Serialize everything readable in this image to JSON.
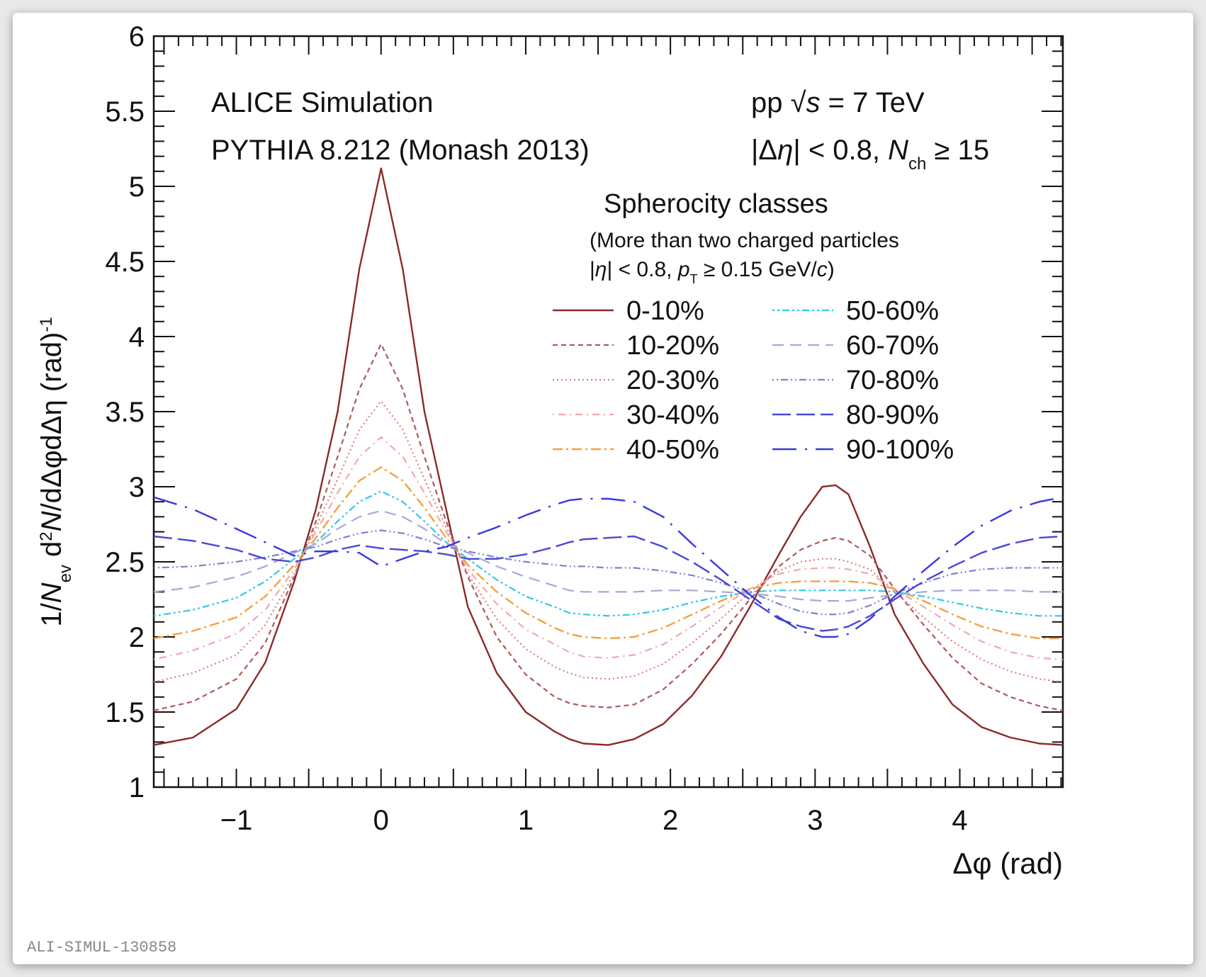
{
  "chart_data": {
    "type": "line",
    "xlabel": "Δφ (rad)",
    "ylabel": {
      "parts": [
        {
          "t": "1/",
          "s": "n"
        },
        {
          "t": "N",
          "s": "i"
        },
        {
          "t": "ev",
          "s": "sub"
        },
        {
          "t": " d",
          "s": "n"
        },
        {
          "t": "2",
          "s": "sup"
        },
        {
          "t": "N",
          "s": "i"
        },
        {
          "t": "/dΔφdΔη (rad)",
          "s": "n"
        },
        {
          "t": "-1",
          "s": "sup"
        }
      ]
    },
    "xlim": [
      -1.5708,
      4.7124
    ],
    "ylim": [
      1,
      6
    ],
    "x_ticks": [
      -1,
      0,
      1,
      2,
      3,
      4
    ],
    "x_tick_labels": [
      "−1",
      "0",
      "1",
      "2",
      "3",
      "4"
    ],
    "y_ticks": [
      1,
      1.5,
      2,
      2.5,
      3,
      3.5,
      4,
      4.5,
      5,
      5.5,
      6
    ],
    "y_tick_labels": [
      "1",
      "1.5",
      "2",
      "2.5",
      "3",
      "3.5",
      "4",
      "4.5",
      "5",
      "5.5",
      "6"
    ],
    "annotations": {
      "experiment": "ALICE Simulation",
      "generator": "PYTHIA 8.212 (Monash 2013)",
      "energy": {
        "parts": [
          {
            "t": "pp ",
            "s": "n"
          },
          {
            "t": "√",
            "s": "n"
          },
          {
            "t": "s",
            "s": "i"
          },
          {
            "t": " = 7 TeV",
            "s": "n"
          }
        ]
      },
      "cuts": {
        "parts": [
          {
            "t": "|Δ",
            "s": "n"
          },
          {
            "t": "η",
            "s": "i"
          },
          {
            "t": "| < 0.8, ",
            "s": "n"
          },
          {
            "t": "N",
            "s": "i"
          },
          {
            "t": "ch",
            "s": "sub"
          },
          {
            "t": " ≥ 15",
            "s": "n"
          }
        ]
      },
      "legend_title": "Spherocity classes",
      "legend_note1": "(More than two charged particles",
      "legend_note2": {
        "parts": [
          {
            "t": "|",
            "s": "n"
          },
          {
            "t": "η",
            "s": "i"
          },
          {
            "t": "| < 0.8, ",
            "s": "n"
          },
          {
            "t": "p",
            "s": "i"
          },
          {
            "t": "T",
            "s": "sub"
          },
          {
            "t": " ≥ 0.15 GeV/",
            "s": "n"
          },
          {
            "t": "c",
            "s": "i"
          },
          {
            "t": ")",
            "s": "n"
          }
        ]
      },
      "figure_id": "ALI-SIMUL-130858"
    },
    "legend_placement": "top-right",
    "near_side_x": [
      -1.5708,
      -1.3,
      -1.0,
      -0.8,
      -0.6,
      -0.45,
      -0.3,
      -0.15,
      0.0,
      0.15,
      0.3,
      0.45,
      0.6,
      0.8,
      1.0,
      1.2,
      1.3,
      1.4,
      1.5708
    ],
    "away_side_x": [
      1.5708,
      1.75,
      1.95,
      2.15,
      2.35,
      2.55,
      2.75,
      2.9,
      3.05,
      3.1416,
      3.23,
      3.38,
      3.55,
      3.75,
      3.95,
      4.15,
      4.35,
      4.55,
      4.7124
    ],
    "series": [
      {
        "name": "0-10%",
        "color": "#8b2a2a",
        "dash": "",
        "width": 2.4,
        "near": [
          1.28,
          1.33,
          1.52,
          1.83,
          2.37,
          2.85,
          3.5,
          4.45,
          5.12,
          4.45,
          3.5,
          2.85,
          2.2,
          1.76,
          1.5,
          1.37,
          1.32,
          1.29,
          1.28
        ],
        "away": [
          1.28,
          1.32,
          1.42,
          1.61,
          1.87,
          2.2,
          2.55,
          2.8,
          3.0,
          3.01,
          2.95,
          2.6,
          2.15,
          1.82,
          1.55,
          1.4,
          1.33,
          1.29,
          1.28
        ]
      },
      {
        "name": "10-20%",
        "color": "#b05858",
        "dash": "7,5",
        "width": 2.2,
        "near": [
          1.51,
          1.57,
          1.72,
          1.96,
          2.4,
          2.77,
          3.2,
          3.65,
          3.95,
          3.65,
          3.2,
          2.77,
          2.4,
          2.0,
          1.75,
          1.6,
          1.56,
          1.54,
          1.53
        ],
        "away": [
          1.53,
          1.55,
          1.65,
          1.82,
          2.02,
          2.25,
          2.47,
          2.58,
          2.64,
          2.66,
          2.64,
          2.54,
          2.32,
          2.08,
          1.86,
          1.69,
          1.6,
          1.54,
          1.51
        ]
      },
      {
        "name": "20-30%",
        "color": "#e07a7a",
        "dash": "2,4",
        "width": 2.2,
        "near": [
          1.7,
          1.76,
          1.88,
          2.08,
          2.42,
          2.73,
          3.05,
          3.38,
          3.57,
          3.38,
          3.05,
          2.73,
          2.42,
          2.12,
          1.92,
          1.8,
          1.76,
          1.73,
          1.72
        ],
        "away": [
          1.72,
          1.74,
          1.82,
          1.96,
          2.12,
          2.3,
          2.44,
          2.5,
          2.52,
          2.52,
          2.5,
          2.45,
          2.3,
          2.13,
          1.97,
          1.85,
          1.77,
          1.72,
          1.7
        ]
      },
      {
        "name": "30-40%",
        "color": "#f0a8a8",
        "dash": "2,6,10,6",
        "width": 2.2,
        "near": [
          1.85,
          1.91,
          2.02,
          2.18,
          2.45,
          2.7,
          2.96,
          3.2,
          3.33,
          3.2,
          2.96,
          2.7,
          2.45,
          2.22,
          2.05,
          1.95,
          1.9,
          1.87,
          1.86
        ],
        "away": [
          1.86,
          1.88,
          1.95,
          2.07,
          2.2,
          2.32,
          2.42,
          2.45,
          2.46,
          2.46,
          2.45,
          2.42,
          2.32,
          2.2,
          2.08,
          1.97,
          1.9,
          1.86,
          1.85
        ]
      },
      {
        "name": "40-50%",
        "color": "#f5a040",
        "dash": "14,5,3,5",
        "width": 2.4,
        "near": [
          1.99,
          2.04,
          2.13,
          2.27,
          2.48,
          2.66,
          2.86,
          3.04,
          3.13,
          3.04,
          2.86,
          2.66,
          2.48,
          2.3,
          2.16,
          2.06,
          2.02,
          2.0,
          1.99
        ],
        "away": [
          1.99,
          2.0,
          2.06,
          2.15,
          2.24,
          2.32,
          2.36,
          2.37,
          2.37,
          2.37,
          2.37,
          2.36,
          2.32,
          2.24,
          2.15,
          2.07,
          2.02,
          1.99,
          1.99
        ]
      },
      {
        "name": "50-60%",
        "color": "#30c8e8",
        "dash": "3,4,3,4,10,4",
        "width": 2.2,
        "near": [
          2.14,
          2.18,
          2.26,
          2.37,
          2.52,
          2.63,
          2.77,
          2.9,
          2.97,
          2.9,
          2.77,
          2.63,
          2.52,
          2.38,
          2.27,
          2.2,
          2.16,
          2.15,
          2.14
        ],
        "away": [
          2.14,
          2.15,
          2.18,
          2.23,
          2.27,
          2.3,
          2.31,
          2.31,
          2.31,
          2.31,
          2.31,
          2.31,
          2.3,
          2.27,
          2.23,
          2.19,
          2.16,
          2.14,
          2.14
        ]
      },
      {
        "name": "60-70%",
        "color": "#a8a8d8",
        "dash": "16,9",
        "width": 2.2,
        "near": [
          2.3,
          2.33,
          2.4,
          2.47,
          2.56,
          2.62,
          2.72,
          2.8,
          2.84,
          2.8,
          2.72,
          2.62,
          2.56,
          2.47,
          2.4,
          2.34,
          2.31,
          2.3,
          2.3
        ],
        "away": [
          2.3,
          2.3,
          2.31,
          2.31,
          2.3,
          2.29,
          2.27,
          2.25,
          2.24,
          2.24,
          2.24,
          2.26,
          2.28,
          2.3,
          2.31,
          2.31,
          2.31,
          2.3,
          2.3
        ]
      },
      {
        "name": "70-80%",
        "color": "#8080d0",
        "dash": "2,4,2,4,10,4",
        "width": 2.2,
        "near": [
          2.46,
          2.47,
          2.5,
          2.53,
          2.57,
          2.6,
          2.65,
          2.69,
          2.71,
          2.69,
          2.65,
          2.6,
          2.57,
          2.53,
          2.5,
          2.48,
          2.47,
          2.47,
          2.46
        ],
        "away": [
          2.46,
          2.46,
          2.44,
          2.41,
          2.36,
          2.3,
          2.22,
          2.17,
          2.15,
          2.15,
          2.16,
          2.21,
          2.29,
          2.36,
          2.42,
          2.45,
          2.46,
          2.46,
          2.46
        ]
      },
      {
        "name": "80-90%",
        "color": "#4848d8",
        "dash": "26,8",
        "width": 2.4,
        "near": [
          2.67,
          2.64,
          2.58,
          2.52,
          2.5,
          2.53,
          2.58,
          2.61,
          2.59,
          2.58,
          2.57,
          2.55,
          2.52,
          2.52,
          2.55,
          2.6,
          2.63,
          2.65,
          2.66
        ],
        "away": [
          2.66,
          2.67,
          2.6,
          2.5,
          2.38,
          2.25,
          2.12,
          2.07,
          2.04,
          2.05,
          2.07,
          2.14,
          2.25,
          2.37,
          2.47,
          2.56,
          2.62,
          2.66,
          2.67
        ]
      },
      {
        "name": "90-100%",
        "color": "#3838e0",
        "dash": "34,12,3,12",
        "width": 2.4,
        "near": [
          2.93,
          2.85,
          2.72,
          2.63,
          2.54,
          2.57,
          2.57,
          2.56,
          2.47,
          2.52,
          2.57,
          2.6,
          2.66,
          2.73,
          2.81,
          2.88,
          2.91,
          2.92,
          2.92
        ],
        "away": [
          2.92,
          2.9,
          2.8,
          2.62,
          2.45,
          2.28,
          2.13,
          2.04,
          2.0,
          2.0,
          2.02,
          2.12,
          2.27,
          2.44,
          2.6,
          2.74,
          2.84,
          2.9,
          2.93
        ]
      }
    ]
  }
}
